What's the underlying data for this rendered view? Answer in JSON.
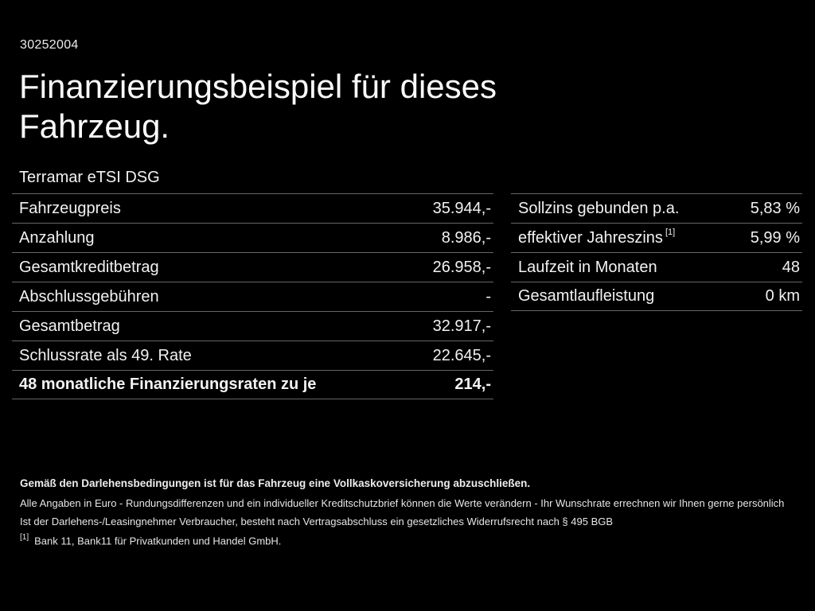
{
  "page": {
    "id_number": "30252004",
    "title_line1": "Finanzierungsbeispiel für dieses",
    "title_line2": "Fahrzeug.",
    "vehicle_name": "Terramar eTSI DSG"
  },
  "left_table": {
    "rows": [
      {
        "label": "Fahrzeugpreis",
        "value": "35.944,-"
      },
      {
        "label": "Anzahlung",
        "value": "8.986,-"
      },
      {
        "label": "Gesamtkreditbetrag",
        "value": "26.958,-"
      },
      {
        "label": "Abschlussgebühren",
        "value": "-"
      },
      {
        "label": "Gesamtbetrag",
        "value": "32.917,-"
      },
      {
        "label": "Schlussrate als 49. Rate",
        "value": "22.645,-"
      },
      {
        "label": "48 monatliche Finanzierungsraten zu je",
        "value": "214,-"
      }
    ]
  },
  "right_table": {
    "rows": [
      {
        "label": "Sollzins gebunden p.a.",
        "value": "5,83 %"
      },
      {
        "label": "effektiver Jahreszins",
        "footnote_marker": "[1]",
        "value": "5,99 %"
      },
      {
        "label": "Laufzeit in Monaten",
        "value": "48"
      },
      {
        "label": "Gesamtlaufleistung",
        "value": "0 km"
      }
    ]
  },
  "legal": {
    "line1": "Gemäß den Darlehensbedingungen ist für das Fahrzeug eine Vollkaskoversicherung abzuschließen.",
    "line2": "Alle Angaben in Euro - Rundungsdifferenzen und ein individueller Kreditschutzbrief können die Werte verändern - Ihr Wunschrate errechnen wir Ihnen gerne persönlich",
    "line3": "Ist der Darlehens-/Leasingnehmer Verbraucher, besteht nach Vertragsabschluss ein gesetzliches Widerrufsrecht nach § 495 BGB",
    "footnote_marker": "[1]",
    "footnote_text": "Bank 11, Bank11 für Privatkunden und Handel GmbH."
  },
  "colors": {
    "background": "#000000",
    "text": "#f2f2f2",
    "divider": "#666666"
  }
}
